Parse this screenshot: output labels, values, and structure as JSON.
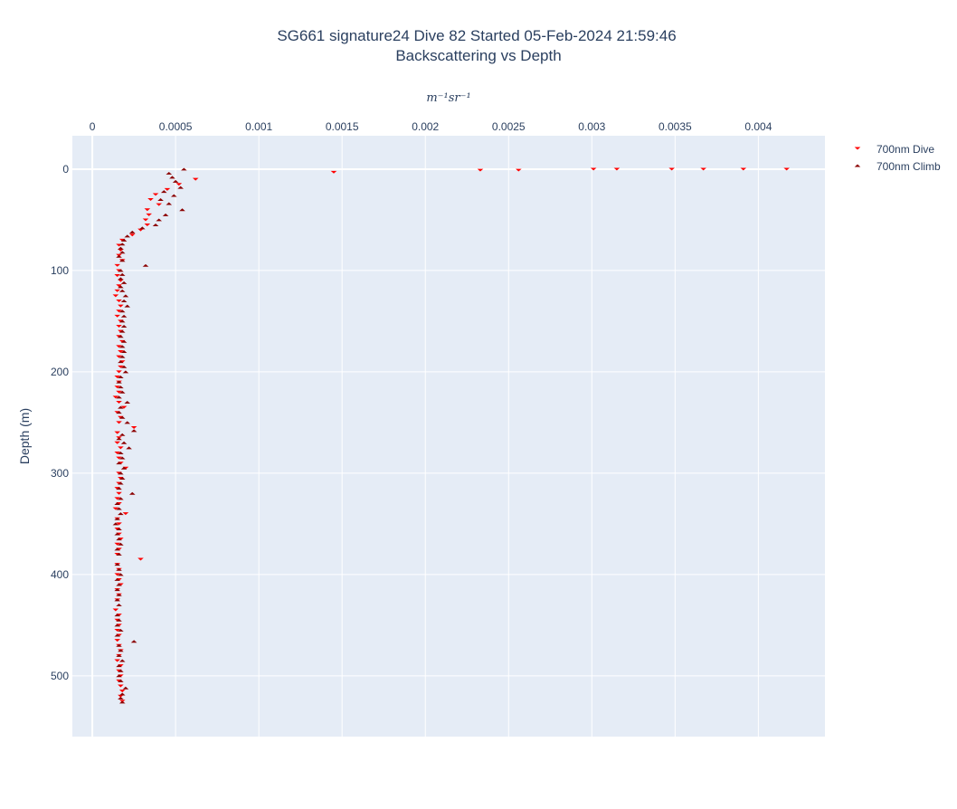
{
  "chart_data": {
    "type": "scatter",
    "title_line1": "SG661 signature24 Dive 82 Started 05-Feb-2024 21:59:46",
    "title_line2": "Backscattering vs Depth",
    "xlabel": "m⁻¹sr⁻¹",
    "ylabel": "Depth (m)",
    "xaxis_side": "top",
    "yaxis_reversed": true,
    "xlim": [
      -0.00012,
      0.0044
    ],
    "ylim": [
      -33,
      560
    ],
    "x_ticks": [
      0,
      0.0005,
      0.001,
      0.0015,
      0.002,
      0.0025,
      0.003,
      0.0035,
      0.004
    ],
    "x_tick_labels": [
      "0",
      "0.0005",
      "0.001",
      "0.0015",
      "0.002",
      "0.0025",
      "0.003",
      "0.0035",
      "0.004"
    ],
    "y_ticks": [
      0,
      100,
      200,
      300,
      400,
      500
    ],
    "y_tick_labels": [
      "0",
      "100",
      "200",
      "300",
      "400",
      "500"
    ],
    "grid": true,
    "legend_position": "top-right",
    "colors": {
      "plot_bg": "#e5ecf6",
      "grid": "#ffffff",
      "dive": "#ff0000",
      "climb": "#8b0000"
    },
    "series": [
      {
        "name": "700nm Dive",
        "marker": "triangle-down",
        "color": "#ff0000",
        "points": [
          [
            0.00145,
            3
          ],
          [
            0.00233,
            1
          ],
          [
            0.00256,
            1
          ],
          [
            0.00301,
            0
          ],
          [
            0.00315,
            0
          ],
          [
            0.00348,
            0
          ],
          [
            0.00367,
            0
          ],
          [
            0.00391,
            0
          ],
          [
            0.00417,
            0
          ],
          [
            0.00062,
            10
          ],
          [
            0.00052,
            15
          ],
          [
            0.00045,
            20
          ],
          [
            0.00038,
            25
          ],
          [
            0.00035,
            30
          ],
          [
            0.0004,
            35
          ],
          [
            0.00033,
            40
          ],
          [
            0.00034,
            45
          ],
          [
            0.00032,
            50
          ],
          [
            0.00033,
            55
          ],
          [
            0.00029,
            60
          ],
          [
            0.00024,
            65
          ],
          [
            0.00018,
            70
          ],
          [
            0.00016,
            75
          ],
          [
            0.00017,
            80
          ],
          [
            0.00016,
            85
          ],
          [
            0.00018,
            90
          ],
          [
            0.00015,
            95
          ],
          [
            0.00016,
            100
          ],
          [
            0.00015,
            105
          ],
          [
            0.00017,
            110
          ],
          [
            0.00016,
            115
          ],
          [
            0.00015,
            120
          ],
          [
            0.00014,
            125
          ],
          [
            0.00016,
            130
          ],
          [
            0.00017,
            135
          ],
          [
            0.00016,
            140
          ],
          [
            0.00015,
            145
          ],
          [
            0.00017,
            150
          ],
          [
            0.00016,
            155
          ],
          [
            0.00017,
            160
          ],
          [
            0.00016,
            165
          ],
          [
            0.00018,
            170
          ],
          [
            0.00016,
            175
          ],
          [
            0.00017,
            180
          ],
          [
            0.00016,
            185
          ],
          [
            0.00018,
            190
          ],
          [
            0.00017,
            195
          ],
          [
            0.00016,
            200
          ],
          [
            0.00015,
            205
          ],
          [
            0.00016,
            210
          ],
          [
            0.00015,
            215
          ],
          [
            0.00016,
            220
          ],
          [
            0.00014,
            225
          ],
          [
            0.00016,
            230
          ],
          [
            0.00019,
            235
          ],
          [
            0.00015,
            240
          ],
          [
            0.00017,
            245
          ],
          [
            0.00016,
            250
          ],
          [
            0.00025,
            255
          ],
          [
            0.00015,
            260
          ],
          [
            0.00016,
            265
          ],
          [
            0.00015,
            270
          ],
          [
            0.00017,
            275
          ],
          [
            0.00015,
            280
          ],
          [
            0.00016,
            285
          ],
          [
            0.00017,
            290
          ],
          [
            0.0002,
            295
          ],
          [
            0.00016,
            300
          ],
          [
            0.00017,
            305
          ],
          [
            0.00016,
            310
          ],
          [
            0.00015,
            315
          ],
          [
            0.00016,
            320
          ],
          [
            0.00015,
            325
          ],
          [
            0.00016,
            330
          ],
          [
            0.00014,
            335
          ],
          [
            0.0002,
            340
          ],
          [
            0.00015,
            345
          ],
          [
            0.00016,
            350
          ],
          [
            0.00015,
            355
          ],
          [
            0.00016,
            360
          ],
          [
            0.00017,
            365
          ],
          [
            0.00015,
            370
          ],
          [
            0.00016,
            375
          ],
          [
            0.00015,
            380
          ],
          [
            0.00029,
            385
          ],
          [
            0.00015,
            390
          ],
          [
            0.00016,
            395
          ],
          [
            0.00015,
            400
          ],
          [
            0.00016,
            405
          ],
          [
            0.00017,
            410
          ],
          [
            0.00015,
            415
          ],
          [
            0.00016,
            420
          ],
          [
            0.00015,
            425
          ],
          [
            0.00014,
            435
          ],
          [
            0.00016,
            440
          ],
          [
            0.00015,
            445
          ],
          [
            0.00016,
            450
          ],
          [
            0.00015,
            455
          ],
          [
            0.00016,
            460
          ],
          [
            0.00015,
            465
          ],
          [
            0.00016,
            470
          ],
          [
            0.00017,
            475
          ],
          [
            0.00016,
            480
          ],
          [
            0.00015,
            485
          ],
          [
            0.00017,
            490
          ],
          [
            0.00016,
            495
          ],
          [
            0.00017,
            500
          ],
          [
            0.00016,
            505
          ],
          [
            0.00017,
            510
          ],
          [
            0.00018,
            515
          ],
          [
            0.00017,
            520
          ],
          [
            0.00018,
            525
          ]
        ]
      },
      {
        "name": "700nm Climb",
        "marker": "triangle-up",
        "color": "#8b0000",
        "points": [
          [
            0.00055,
            0
          ],
          [
            0.00046,
            4
          ],
          [
            0.00048,
            8
          ],
          [
            0.0005,
            12
          ],
          [
            0.00053,
            18
          ],
          [
            0.00043,
            22
          ],
          [
            0.00049,
            26
          ],
          [
            0.00041,
            30
          ],
          [
            0.00046,
            34
          ],
          [
            0.00054,
            40
          ],
          [
            0.00044,
            45
          ],
          [
            0.0004,
            50
          ],
          [
            0.00038,
            55
          ],
          [
            0.0003,
            58
          ],
          [
            0.00024,
            62
          ],
          [
            0.00021,
            66
          ],
          [
            0.00019,
            70
          ],
          [
            0.00018,
            74
          ],
          [
            0.00017,
            78
          ],
          [
            0.00018,
            82
          ],
          [
            0.00016,
            86
          ],
          [
            0.00018,
            90
          ],
          [
            0.00032,
            95
          ],
          [
            0.00017,
            100
          ],
          [
            0.00018,
            104
          ],
          [
            0.00017,
            108
          ],
          [
            0.00019,
            112
          ],
          [
            0.00017,
            116
          ],
          [
            0.00018,
            120
          ],
          [
            0.0002,
            125
          ],
          [
            0.00019,
            130
          ],
          [
            0.00021,
            135
          ],
          [
            0.00018,
            140
          ],
          [
            0.00019,
            145
          ],
          [
            0.00018,
            150
          ],
          [
            0.00019,
            155
          ],
          [
            0.00018,
            160
          ],
          [
            0.00017,
            165
          ],
          [
            0.00019,
            170
          ],
          [
            0.00018,
            175
          ],
          [
            0.00019,
            180
          ],
          [
            0.00018,
            185
          ],
          [
            0.00017,
            190
          ],
          [
            0.00019,
            195
          ],
          [
            0.0002,
            200
          ],
          [
            0.00017,
            205
          ],
          [
            0.00016,
            210
          ],
          [
            0.00017,
            215
          ],
          [
            0.00018,
            220
          ],
          [
            0.00016,
            225
          ],
          [
            0.00021,
            230
          ],
          [
            0.00017,
            235
          ],
          [
            0.00016,
            240
          ],
          [
            0.00018,
            245
          ],
          [
            0.00021,
            250
          ],
          [
            0.00025,
            258
          ],
          [
            0.00018,
            262
          ],
          [
            0.00016,
            266
          ],
          [
            0.00019,
            270
          ],
          [
            0.00022,
            275
          ],
          [
            0.00017,
            280
          ],
          [
            0.00018,
            285
          ],
          [
            0.00016,
            290
          ],
          [
            0.00019,
            295
          ],
          [
            0.00017,
            300
          ],
          [
            0.00018,
            305
          ],
          [
            0.00017,
            310
          ],
          [
            0.00016,
            315
          ],
          [
            0.00024,
            320
          ],
          [
            0.00017,
            325
          ],
          [
            0.00015,
            330
          ],
          [
            0.00016,
            335
          ],
          [
            0.00017,
            340
          ],
          [
            0.00015,
            345
          ],
          [
            0.00014,
            350
          ],
          [
            0.00016,
            355
          ],
          [
            0.00015,
            360
          ],
          [
            0.00016,
            365
          ],
          [
            0.00017,
            370
          ],
          [
            0.00015,
            375
          ],
          [
            0.00016,
            380
          ],
          [
            0.00015,
            390
          ],
          [
            0.00016,
            395
          ],
          [
            0.00017,
            400
          ],
          [
            0.00015,
            405
          ],
          [
            0.00016,
            410
          ],
          [
            0.00015,
            415
          ],
          [
            0.00016,
            420
          ],
          [
            0.00015,
            425
          ],
          [
            0.00016,
            430
          ],
          [
            0.00015,
            440
          ],
          [
            0.00016,
            445
          ],
          [
            0.00015,
            450
          ],
          [
            0.00017,
            455
          ],
          [
            0.00015,
            460
          ],
          [
            0.00025,
            466
          ],
          [
            0.00016,
            470
          ],
          [
            0.00017,
            475
          ],
          [
            0.00016,
            480
          ],
          [
            0.00018,
            485
          ],
          [
            0.00016,
            490
          ],
          [
            0.00017,
            495
          ],
          [
            0.00016,
            500
          ],
          [
            0.00017,
            505
          ],
          [
            0.0002,
            512
          ],
          [
            0.00018,
            518
          ],
          [
            0.00017,
            522
          ],
          [
            0.00018,
            526
          ]
        ]
      }
    ]
  }
}
